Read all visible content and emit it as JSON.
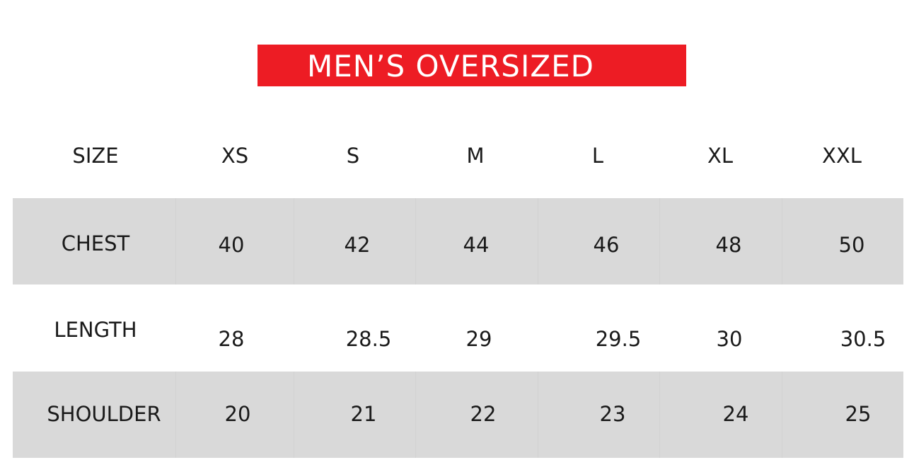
{
  "title": "MEN’S OVERSIZED",
  "colors": {
    "title_bg": "#ed1c24",
    "band": "#d9d9d9"
  },
  "table": {
    "header": [
      "SIZE",
      "XS",
      "S",
      "M",
      "L",
      "XL",
      "XXL"
    ],
    "rows": [
      [
        "CHEST",
        "40",
        "42",
        "44",
        "46",
        "48",
        "50"
      ],
      [
        "LENGTH",
        "28",
        "28.5",
        "29",
        "29.5",
        "30",
        "30.5"
      ],
      [
        "SHOULDER",
        "20",
        "21",
        "22",
        "23",
        "24",
        "25"
      ]
    ]
  }
}
